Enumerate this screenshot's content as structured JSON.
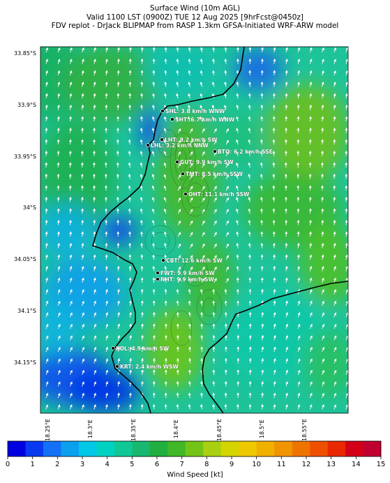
{
  "header": {
    "title": "Surface Wind (10m AGL)",
    "valid": "Valid 1100 LST (0900Z) TUE 12 Aug 2025 [9hrFcst@0450z]",
    "source": "FDV replot - DrJack BLIPMAP from RASP 1.3km GFSA-Initiated WRF-ARW model"
  },
  "axes": {
    "lat_labels": [
      "33.85°S",
      "33.9°S",
      "33.95°S",
      "34°S",
      "34.05°S",
      "34.1°S",
      "34.15°S"
    ],
    "lon_labels": [
      "18.25°E",
      "18.3°E",
      "18.35°E",
      "18.4°E",
      "18.45°E",
      "18.5°E",
      "18.55°E"
    ]
  },
  "stations": [
    {
      "text": "SHL: 3.8 km/h WNW"
    },
    {
      "text": "SHT: 6.7 km/h WNW"
    },
    {
      "text": "LHT: 8.2 km/h SW"
    },
    {
      "text": "LHL: 3.2 km/h NNW"
    },
    {
      "text": "BTO: 6.2 km/h SSE"
    },
    {
      "text": "GUT: 9.9 km/h SW"
    },
    {
      "text": "TMT: 8.5 km/h SSW"
    },
    {
      "text": "OHT: 11.1 km/h SSW"
    },
    {
      "text": "CBT: 12.6 km/h SW"
    },
    {
      "text": "FWT: 9.9 km/h SW"
    },
    {
      "text": "NHT: 9.9 km/h SW"
    },
    {
      "text": "KOL: 4.9 km/h SW"
    },
    {
      "text": "KRT: 2.4 km/h WSW"
    }
  ],
  "colorbar": {
    "label": "Wind Speed [kt]",
    "ticks": [
      "0",
      "1",
      "2",
      "3",
      "4",
      "5",
      "6",
      "7",
      "8",
      "9",
      "10",
      "11",
      "12",
      "13",
      "14",
      "15"
    ],
    "colors": [
      "#0000e0",
      "#0a3af0",
      "#1470f5",
      "#0aa0ee",
      "#00c8e6",
      "#00d2c2",
      "#10c896",
      "#18b870",
      "#20b040",
      "#40b828",
      "#74c418",
      "#a8d010",
      "#d4d400",
      "#eec800",
      "#f0b000",
      "#f09400",
      "#ee7400",
      "#ee5000",
      "#e82800",
      "#d40018",
      "#c00030"
    ]
  }
}
